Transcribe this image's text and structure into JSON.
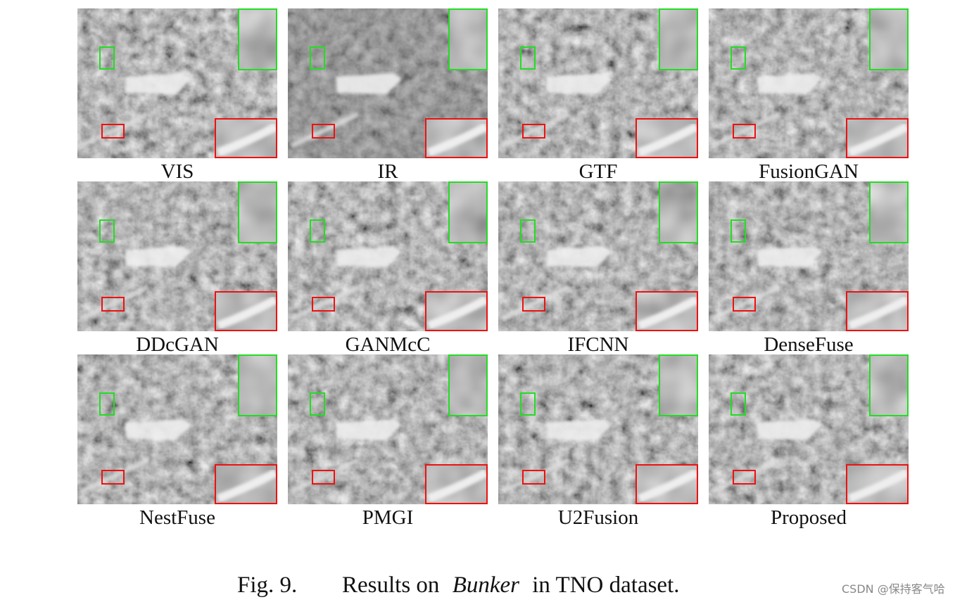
{
  "figure": {
    "panels": [
      "VIS",
      "IR",
      "GTF",
      "FusionGAN",
      "DDcGAN",
      "GANMcC",
      "IFCNN",
      "DenseFuse",
      "NestFuse",
      "PMGI",
      "U2Fusion",
      "Proposed"
    ],
    "caption": {
      "label": "Fig. 9.",
      "text_before": "Results on",
      "emphasis": "Bunker",
      "text_after": "in TNO dataset."
    }
  },
  "watermark": "CSDN @保持客气哈"
}
